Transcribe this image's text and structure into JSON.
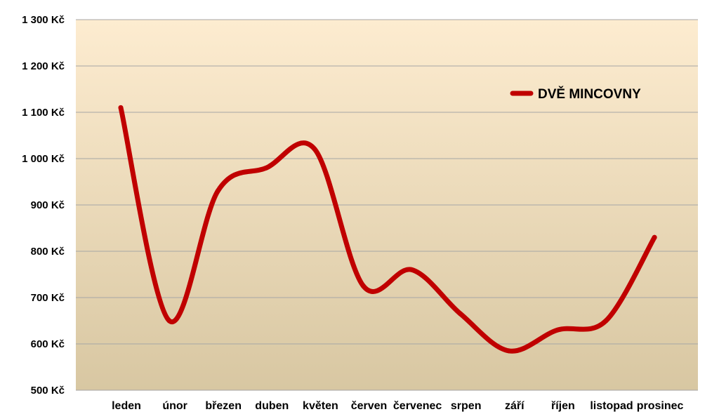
{
  "chart_data": {
    "type": "line",
    "categories": [
      "leden",
      "únor",
      "březen",
      "duben",
      "květen",
      "červen",
      "červenec",
      "srpen",
      "září",
      "říjen",
      "listopad",
      "prosinec"
    ],
    "series": [
      {
        "name": "DVĚ MINCOVNY",
        "values": [
          1110,
          650,
          930,
          980,
          1020,
          725,
          760,
          665,
          585,
          630,
          650,
          830
        ],
        "color": "#c00000"
      }
    ],
    "ylim": [
      500,
      1300
    ],
    "yticks": [
      {
        "value": 500,
        "label": "500 Kč"
      },
      {
        "value": 600,
        "label": "600 Kč"
      },
      {
        "value": 700,
        "label": "700 Kč"
      },
      {
        "value": 800,
        "label": "800 Kč"
      },
      {
        "value": 900,
        "label": "900 Kč"
      },
      {
        "value": 1000,
        "label": "1 000 Kč"
      },
      {
        "value": 1100,
        "label": "1 100 Kč"
      },
      {
        "value": 1200,
        "label": "1 200 Kč"
      },
      {
        "value": 1300,
        "label": "1 300 Kč"
      }
    ],
    "grid": true,
    "legend_position": "top-right",
    "background_gradient": [
      "#fdecd0",
      "#d8c7a2"
    ],
    "gridline_color": "#a6a6a6"
  }
}
